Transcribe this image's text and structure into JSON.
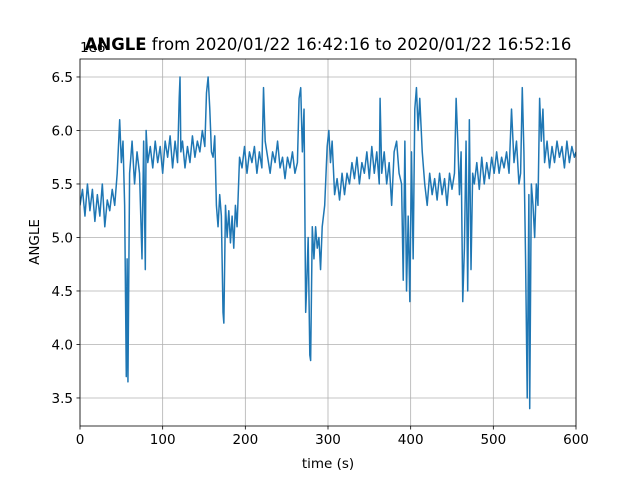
{
  "chart_data": {
    "type": "line",
    "title": "ANGLE",
    "subtitle": "from 2020/01/22 16:42:16 to 2020/01/22 16:52:16",
    "x_label": "time (s)",
    "y_label": "ANGLE",
    "y_offset_label": "1e6",
    "xlim": [
      0,
      600
    ],
    "ylim": [
      3.238,
      6.668
    ],
    "xticks": [
      0,
      100,
      200,
      300,
      400,
      500,
      600
    ],
    "yticks": [
      3.5,
      {
        "value": 4,
        "label": "4.0"
      },
      4.5,
      {
        "value": 5,
        "label": "5.0"
      },
      5.5,
      {
        "value": 6,
        "label": "6.0"
      },
      6.5
    ],
    "grid": true,
    "x": [
      0,
      3,
      6,
      9,
      12,
      15,
      18,
      21,
      24,
      27,
      30,
      33,
      36,
      39,
      42,
      45,
      48,
      50,
      52,
      54,
      56,
      57,
      58,
      60,
      63,
      66,
      69,
      72,
      75,
      77,
      79,
      80,
      82,
      85,
      88,
      91,
      94,
      97,
      100,
      103,
      106,
      109,
      112,
      115,
      118,
      120,
      121,
      122,
      124,
      127,
      130,
      133,
      136,
      139,
      142,
      145,
      148,
      151,
      153,
      155,
      157,
      159,
      161,
      163,
      165,
      167,
      169,
      171,
      173,
      174,
      176,
      178,
      180,
      182,
      184,
      186,
      188,
      190,
      193,
      196,
      199,
      202,
      205,
      208,
      211,
      214,
      217,
      220,
      222,
      224,
      227,
      230,
      233,
      236,
      239,
      242,
      245,
      248,
      251,
      254,
      257,
      260,
      263,
      265,
      267,
      269,
      271,
      273,
      274,
      276,
      278,
      279,
      281,
      283,
      285,
      287,
      289,
      291,
      293,
      296,
      299,
      301,
      303,
      305,
      308,
      311,
      314,
      317,
      320,
      323,
      326,
      329,
      332,
      335,
      338,
      341,
      344,
      347,
      350,
      353,
      356,
      359,
      362,
      363,
      365,
      368,
      371,
      374,
      377,
      380,
      383,
      386,
      389,
      391,
      393,
      395,
      397,
      399,
      401,
      403,
      405,
      407,
      409,
      411,
      414,
      417,
      420,
      423,
      426,
      429,
      432,
      435,
      438,
      441,
      444,
      447,
      450,
      453,
      455,
      457,
      459,
      461,
      463,
      465,
      467,
      469,
      471,
      473,
      475,
      477,
      480,
      483,
      486,
      489,
      492,
      495,
      498,
      501,
      504,
      507,
      510,
      513,
      516,
      519,
      522,
      525,
      528,
      531,
      533,
      535,
      537,
      539,
      541,
      543,
      544,
      546,
      548,
      550,
      552,
      554,
      556,
      558,
      560,
      562,
      565,
      568,
      571,
      574,
      577,
      580,
      583,
      586,
      589,
      592,
      595,
      598,
      600
    ],
    "series": [
      {
        "name": "ANGLE",
        "color": "#1f77b4",
        "values": [
          5.3,
          5.45,
          5.2,
          5.5,
          5.25,
          5.45,
          5.15,
          5.4,
          5.2,
          5.5,
          5.1,
          5.35,
          5.25,
          5.45,
          5.3,
          5.6,
          6.1,
          5.7,
          5.9,
          5.3,
          3.7,
          4.8,
          3.65,
          5.6,
          5.9,
          5.5,
          5.8,
          5.6,
          4.8,
          5.9,
          4.7,
          6.0,
          5.7,
          5.85,
          5.65,
          5.9,
          5.7,
          5.85,
          5.6,
          5.9,
          5.75,
          5.95,
          5.65,
          5.9,
          5.7,
          6.3,
          6.5,
          5.8,
          5.9,
          5.65,
          5.85,
          5.7,
          5.95,
          5.75,
          5.9,
          5.8,
          6.0,
          5.85,
          6.35,
          6.5,
          6.2,
          5.8,
          5.75,
          5.95,
          5.3,
          5.1,
          5.4,
          5.2,
          4.3,
          4.2,
          5.3,
          5.0,
          5.25,
          4.95,
          5.2,
          4.9,
          5.3,
          5.1,
          5.75,
          5.65,
          5.85,
          5.6,
          5.8,
          5.7,
          5.85,
          5.6,
          5.8,
          5.65,
          6.4,
          5.9,
          5.75,
          5.6,
          5.8,
          5.7,
          5.9,
          5.65,
          5.75,
          5.55,
          5.75,
          5.65,
          5.8,
          5.6,
          5.7,
          6.3,
          6.4,
          5.8,
          6.2,
          4.3,
          4.5,
          5.0,
          3.9,
          3.85,
          5.1,
          4.8,
          5.1,
          4.9,
          5.0,
          4.7,
          5.1,
          5.3,
          5.85,
          6.0,
          5.7,
          5.9,
          5.4,
          5.55,
          5.35,
          5.6,
          5.4,
          5.6,
          5.5,
          5.7,
          5.55,
          5.75,
          5.5,
          5.7,
          5.6,
          5.8,
          5.55,
          5.85,
          5.6,
          5.8,
          5.5,
          6.3,
          5.6,
          5.8,
          5.5,
          5.7,
          5.3,
          5.8,
          5.9,
          5.6,
          5.5,
          4.6,
          5.9,
          4.5,
          5.2,
          4.4,
          5.8,
          4.8,
          6.2,
          6.4,
          6.0,
          6.3,
          5.8,
          5.5,
          5.3,
          5.6,
          5.4,
          5.55,
          5.35,
          5.6,
          5.4,
          5.55,
          5.3,
          5.6,
          5.45,
          5.6,
          6.3,
          5.9,
          5.4,
          5.8,
          4.4,
          4.9,
          5.9,
          4.5,
          6.1,
          4.7,
          5.6,
          5.5,
          5.7,
          5.45,
          5.75,
          5.5,
          5.7,
          5.55,
          5.75,
          5.6,
          5.8,
          5.6,
          5.75,
          5.65,
          5.8,
          5.6,
          6.2,
          5.7,
          5.9,
          5.5,
          5.6,
          6.4,
          5.8,
          4.8,
          3.5,
          5.4,
          3.4,
          5.5,
          5.3,
          5.0,
          5.5,
          5.3,
          6.3,
          5.9,
          6.2,
          5.7,
          5.9,
          5.65,
          5.85,
          5.7,
          5.9,
          5.75,
          5.85,
          5.65,
          5.9,
          5.7,
          5.85,
          5.75,
          5.8
        ]
      }
    ]
  }
}
